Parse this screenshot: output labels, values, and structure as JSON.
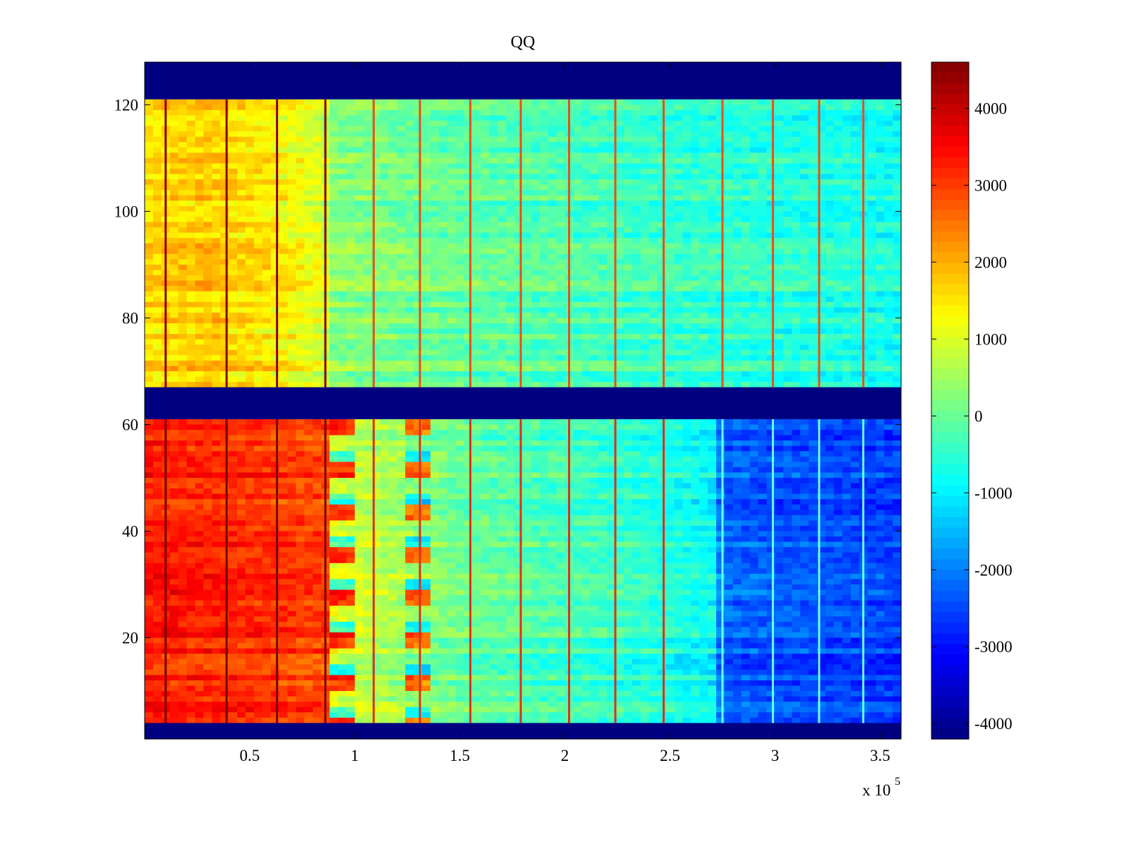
{
  "chart_data": {
    "type": "heatmap",
    "title": "QQ",
    "xlabel": "",
    "ylabel": "",
    "x_multiplier_label": "x 10",
    "x_multiplier_exponent": "5",
    "xlim": [
      0,
      3.6
    ],
    "ylim": [
      1,
      128
    ],
    "x_ticks": [
      {
        "value": 0.5,
        "label": "0.5"
      },
      {
        "value": 1.0,
        "label": "1"
      },
      {
        "value": 1.5,
        "label": "1.5"
      },
      {
        "value": 2.0,
        "label": "2"
      },
      {
        "value": 2.5,
        "label": "2.5"
      },
      {
        "value": 3.0,
        "label": "3"
      },
      {
        "value": 3.5,
        "label": "3.5"
      }
    ],
    "y_ticks": [
      {
        "value": 20,
        "label": "20"
      },
      {
        "value": 40,
        "label": "40"
      },
      {
        "value": 60,
        "label": "60"
      },
      {
        "value": 80,
        "label": "80"
      },
      {
        "value": 100,
        "label": "100"
      },
      {
        "value": 120,
        "label": "120"
      }
    ],
    "colorbar": {
      "colormap": "jet",
      "range": [
        -4200,
        4600
      ],
      "ticks": [
        {
          "value": 4000,
          "label": "4000"
        },
        {
          "value": 3000,
          "label": "3000"
        },
        {
          "value": 2000,
          "label": "2000"
        },
        {
          "value": 1000,
          "label": "1000"
        },
        {
          "value": 0,
          "label": "0"
        },
        {
          "value": -1000,
          "label": "-1000"
        },
        {
          "value": -2000,
          "label": "-2000"
        },
        {
          "value": -3000,
          "label": "-3000"
        },
        {
          "value": -4000,
          "label": "-4000"
        }
      ]
    },
    "regions": [
      {
        "name": "top-fill",
        "y_range": [
          121,
          128
        ],
        "value": -4200
      },
      {
        "name": "upper-band",
        "y_range": [
          67,
          121
        ],
        "x_profile": [
          [
            0,
            1600
          ],
          [
            0.3,
            1800
          ],
          [
            0.6,
            1500
          ],
          [
            0.85,
            1000
          ],
          [
            0.9,
            300
          ],
          [
            1.5,
            0
          ],
          [
            2.5,
            -400
          ],
          [
            3.6,
            -700
          ]
        ]
      },
      {
        "name": "middle-gap",
        "y_range": [
          61,
          67
        ],
        "value": -4200
      },
      {
        "name": "lower-band",
        "y_range": [
          4,
          61
        ],
        "x_profile": [
          [
            0,
            3300
          ],
          [
            0.5,
            3100
          ],
          [
            0.88,
            2900
          ],
          [
            0.9,
            1000
          ],
          [
            1.5,
            0
          ],
          [
            2.3,
            -500
          ],
          [
            2.7,
            -900
          ],
          [
            2.75,
            -2300
          ],
          [
            3.6,
            -2600
          ]
        ]
      },
      {
        "name": "bottom-fill",
        "y_range": [
          1,
          4
        ],
        "value": -4200
      }
    ],
    "spike_columns": [
      0.1,
      0.39,
      0.63,
      0.86,
      1.09,
      1.31,
      1.55,
      1.79,
      2.02,
      2.24,
      2.47,
      2.75,
      2.99,
      3.21,
      3.42
    ]
  }
}
